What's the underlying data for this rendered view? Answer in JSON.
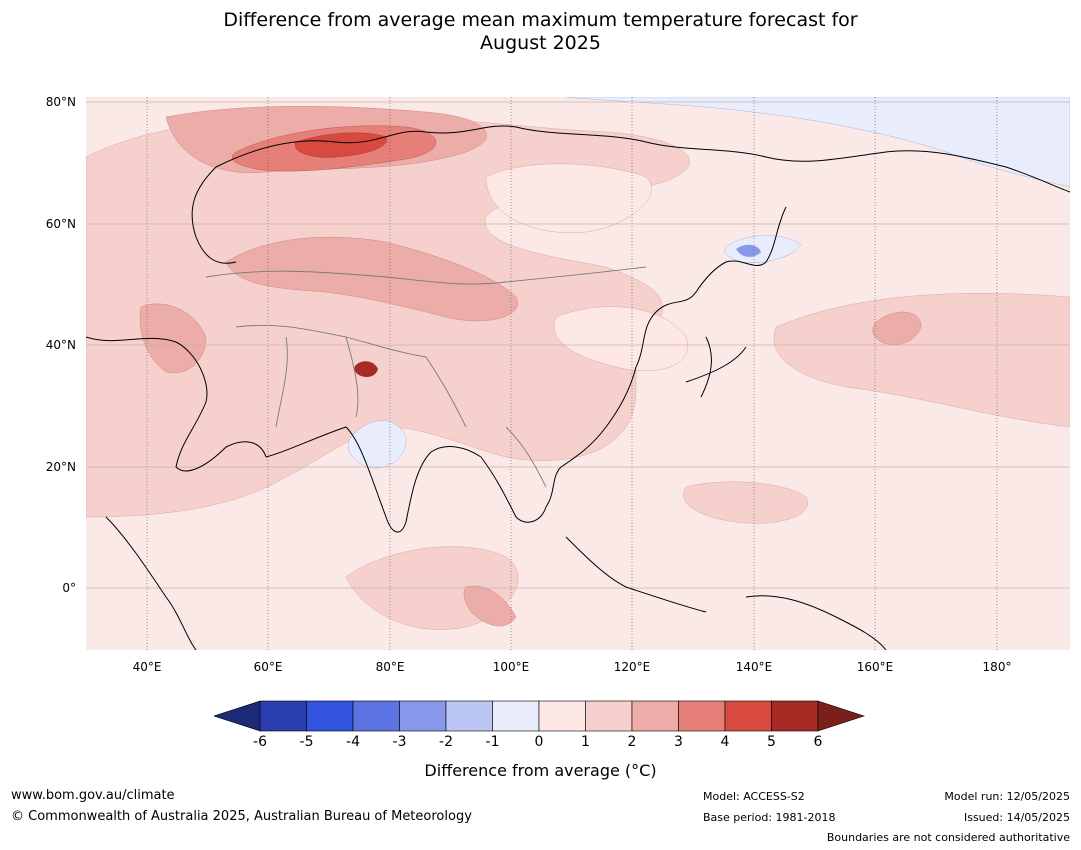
{
  "title_line1": "Difference from average mean maximum temperature forecast for",
  "title_line2": "August 2025",
  "lat_labels": [
    "80°N",
    "60°N",
    "40°N",
    "20°N",
    "0°"
  ],
  "lon_labels": [
    "40°E",
    "60°E",
    "80°E",
    "100°E",
    "120°E",
    "140°E",
    "160°E",
    "180°"
  ],
  "colorbar": {
    "ticks": [
      "-6",
      "-5",
      "-4",
      "-3",
      "-2",
      "-1",
      "0",
      "1",
      "2",
      "3",
      "4",
      "5",
      "6"
    ],
    "colors": [
      "#2a3eb1",
      "#3253e0",
      "#5b73e3",
      "#8898ea",
      "#bcc6f4",
      "#e8ecfb",
      "#fde8e6",
      "#f5d0cd",
      "#ecaca7",
      "#e57f78",
      "#d84a40",
      "#a82a24"
    ],
    "min_color": "#1c2a78",
    "max_color": "#7b1f1a",
    "label": "Difference from average ($^\\circ$C)"
  },
  "colorbar_label_display": "Difference from average (°C)",
  "footer": {
    "url": "www.bom.gov.au/climate",
    "copyright": "© Commonwealth of Australia 2025, Australian Bureau of Meteorology",
    "model": "Model: ACCESS-S2",
    "base_period": "Base period: 1981-2018",
    "model_run": "Model run: 12/05/2025",
    "issued": "Issued: 14/05/2025",
    "disclaimer": "Boundaries are not considered authoritative"
  }
}
